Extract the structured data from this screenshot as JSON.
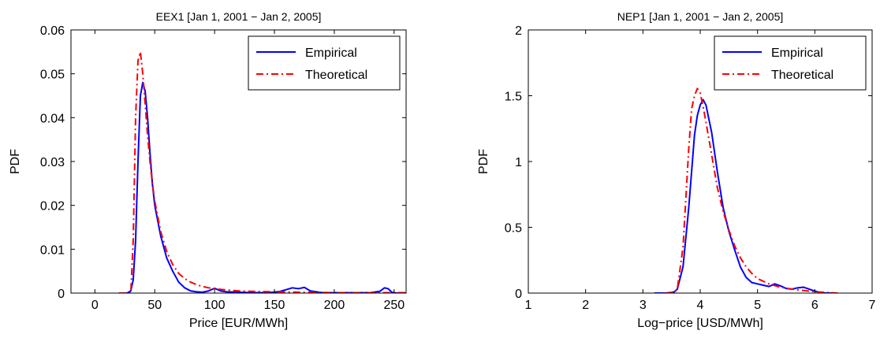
{
  "chart_data": [
    {
      "type": "line",
      "title": "EEX1 [Jan 1, 2001 − Jan 2, 2005]",
      "xlabel": "Price [EUR/MWh]",
      "ylabel": "PDF",
      "xlim": [
        -20,
        260
      ],
      "ylim": [
        0,
        0.06
      ],
      "xticks": [
        0,
        50,
        100,
        150,
        200,
        250
      ],
      "xtick_labels": [
        "0",
        "50",
        "100",
        "150",
        "200",
        "250"
      ],
      "yticks": [
        0,
        0.01,
        0.02,
        0.03,
        0.04,
        0.05,
        0.06
      ],
      "ytick_labels": [
        "0",
        "0.01",
        "0.02",
        "0.03",
        "0.04",
        "0.05",
        "0.06"
      ],
      "legend_position": "top-right",
      "grid": false,
      "series": [
        {
          "name": "Empirical",
          "color": "#0000ff",
          "style": "solid",
          "x": [
            20,
            27,
            30,
            32,
            34,
            36,
            38,
            40,
            42,
            44,
            46,
            48,
            50,
            55,
            60,
            65,
            70,
            75,
            80,
            85,
            90,
            95,
            100,
            105,
            110,
            120,
            130,
            140,
            150,
            155,
            160,
            165,
            170,
            175,
            180,
            190,
            200,
            210,
            220,
            230,
            238,
            242,
            245,
            248,
            252,
            260
          ],
          "y": [
            0,
            0,
            0.0005,
            0.003,
            0.012,
            0.03,
            0.045,
            0.048,
            0.046,
            0.04,
            0.032,
            0.025,
            0.02,
            0.013,
            0.008,
            0.005,
            0.0025,
            0.0012,
            0.0005,
            0.0003,
            0.0002,
            0.0005,
            0.0011,
            0.0005,
            0.0003,
            0.0002,
            0.0001,
            0.0001,
            0.0002,
            0.0004,
            0.0008,
            0.0012,
            0.001,
            0.0013,
            0.0005,
            0.0001,
            0.0001,
            0.0001,
            0.0001,
            0.0001,
            0.0004,
            0.0012,
            0.001,
            0.0002,
            0,
            0
          ]
        },
        {
          "name": "Theoretical",
          "color": "#ff0000",
          "style": "dash-dot",
          "x": [
            20,
            30,
            32,
            34,
            36,
            38,
            40,
            42,
            44,
            46,
            48,
            50,
            55,
            60,
            65,
            70,
            75,
            80,
            85,
            90,
            95,
            100,
            110,
            120,
            130,
            150,
            170,
            200,
            230,
            250,
            260
          ],
          "y": [
            0,
            0,
            0.012,
            0.04,
            0.053,
            0.055,
            0.05,
            0.043,
            0.036,
            0.03,
            0.025,
            0.021,
            0.014,
            0.0095,
            0.0065,
            0.0045,
            0.0033,
            0.0025,
            0.0019,
            0.0015,
            0.0012,
            0.001,
            0.0007,
            0.0005,
            0.0004,
            0.0003,
            0.0002,
            0.0001,
            0.0001,
            0.0001,
            0.0001
          ]
        }
      ]
    },
    {
      "type": "line",
      "title": "NEP1 [Jan 1, 2001 − Jan 2, 2005]",
      "xlabel": "Log−price [USD/MWh]",
      "ylabel": "PDF",
      "xlim": [
        1,
        7
      ],
      "ylim": [
        0,
        2
      ],
      "xticks": [
        1,
        2,
        3,
        4,
        5,
        6,
        7
      ],
      "xtick_labels": [
        "1",
        "2",
        "3",
        "4",
        "5",
        "6",
        "7"
      ],
      "yticks": [
        0,
        0.5,
        1,
        1.5,
        2
      ],
      "ytick_labels": [
        "0",
        "0.5",
        "1",
        "1.5",
        "2"
      ],
      "legend_position": "top-right",
      "grid": false,
      "series": [
        {
          "name": "Empirical",
          "color": "#0000ff",
          "style": "solid",
          "x": [
            3.2,
            3.4,
            3.5,
            3.55,
            3.6,
            3.7,
            3.8,
            3.9,
            3.95,
            4.0,
            4.05,
            4.1,
            4.2,
            4.3,
            4.4,
            4.5,
            4.6,
            4.7,
            4.8,
            4.9,
            5.0,
            5.1,
            5.2,
            5.3,
            5.4,
            5.5,
            5.6,
            5.7,
            5.8,
            5.9,
            6.0,
            6.1,
            6.2,
            6.4
          ],
          "y": [
            0,
            0,
            0.005,
            0.01,
            0.03,
            0.2,
            0.65,
            1.2,
            1.35,
            1.43,
            1.47,
            1.43,
            1.22,
            0.92,
            0.65,
            0.47,
            0.33,
            0.2,
            0.12,
            0.08,
            0.07,
            0.06,
            0.05,
            0.07,
            0.055,
            0.035,
            0.03,
            0.04,
            0.045,
            0.03,
            0.015,
            0.005,
            0,
            0
          ]
        },
        {
          "name": "Theoretical",
          "color": "#ff0000",
          "style": "dash-dot",
          "x": [
            3.4,
            3.55,
            3.6,
            3.7,
            3.8,
            3.85,
            3.9,
            3.95,
            4.0,
            4.05,
            4.1,
            4.2,
            4.3,
            4.4,
            4.5,
            4.6,
            4.7,
            4.8,
            4.9,
            5.0,
            5.2,
            5.4,
            5.6,
            5.8,
            6.0,
            6.2,
            6.4
          ],
          "y": [
            0,
            0.005,
            0.03,
            0.35,
            1.1,
            1.4,
            1.5,
            1.555,
            1.52,
            1.42,
            1.3,
            1.05,
            0.8,
            0.62,
            0.48,
            0.36,
            0.27,
            0.2,
            0.15,
            0.11,
            0.07,
            0.045,
            0.03,
            0.02,
            0.01,
            0.005,
            0
          ]
        }
      ]
    }
  ]
}
